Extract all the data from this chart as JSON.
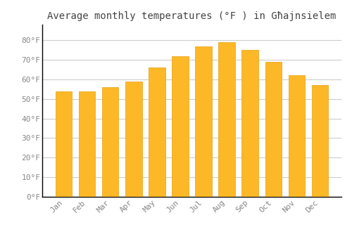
{
  "title": "Average monthly temperatures (°F ) in Għajnsielem",
  "months": [
    "Jan",
    "Feb",
    "Mar",
    "Apr",
    "May",
    "Jun",
    "Jul",
    "Aug",
    "Sep",
    "Oct",
    "Nov",
    "Dec"
  ],
  "values": [
    54,
    54,
    56,
    59,
    66,
    72,
    77,
    79,
    75,
    69,
    62,
    57
  ],
  "bar_color_face": "#FDB827",
  "bar_color_edge": "#E8A010",
  "background_color": "#FFFFFF",
  "grid_color": "#CCCCCC",
  "tick_label_color": "#888888",
  "title_color": "#444444",
  "ylim": [
    0,
    88
  ],
  "yticks": [
    0,
    10,
    20,
    30,
    40,
    50,
    60,
    70,
    80
  ],
  "ytick_labels": [
    "0°F",
    "10°F",
    "20°F",
    "30°F",
    "40°F",
    "50°F",
    "60°F",
    "70°F",
    "80°F"
  ],
  "title_fontsize": 10,
  "tick_fontsize": 8,
  "bar_width": 0.7
}
